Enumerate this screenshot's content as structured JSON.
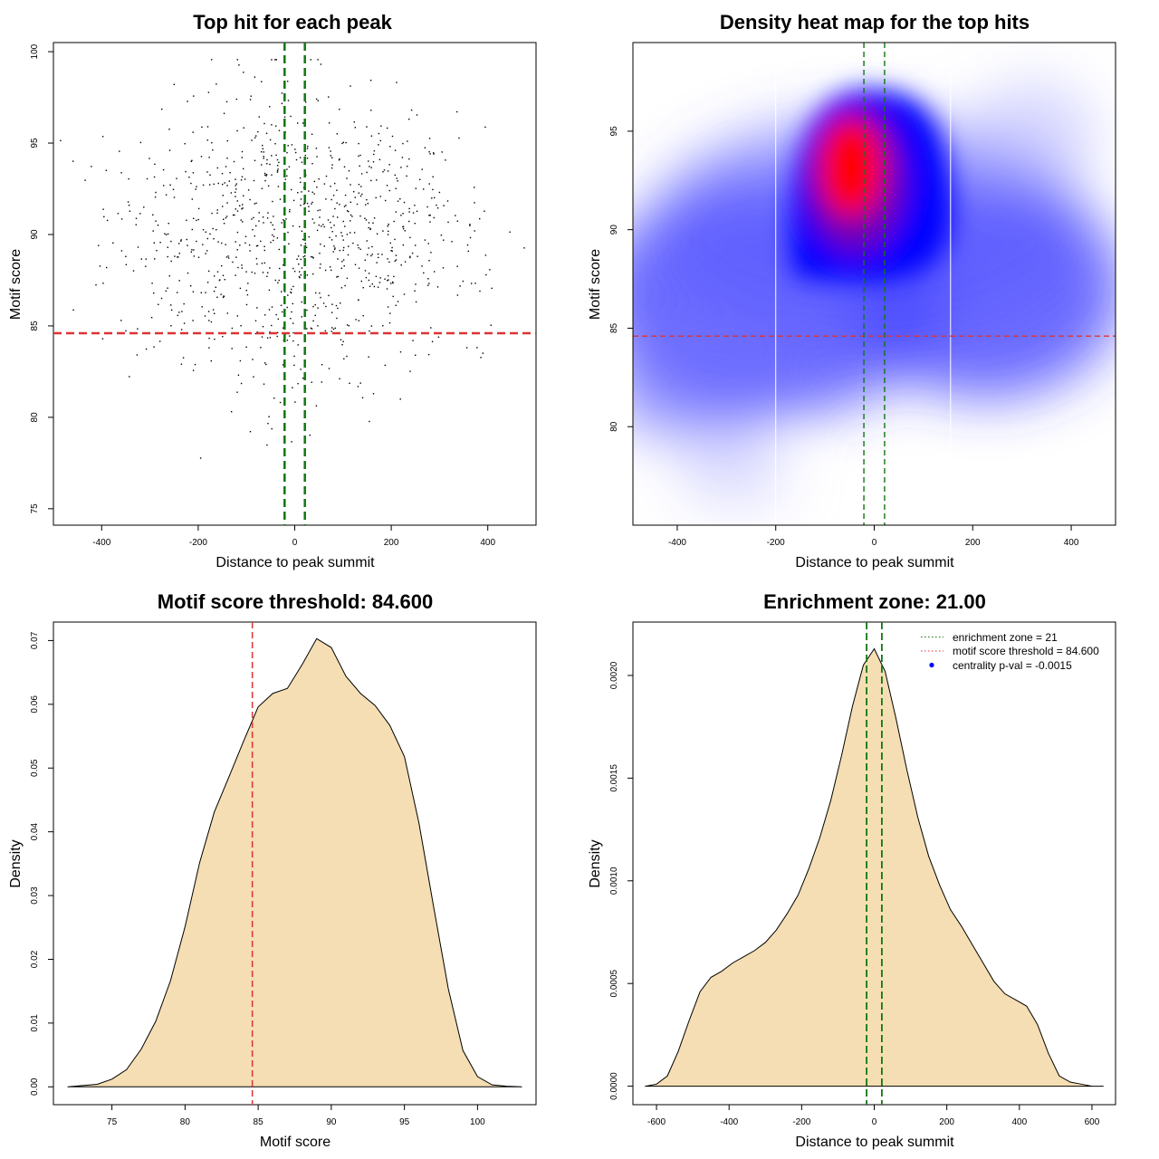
{
  "chart_data": [
    {
      "type": "scatter",
      "title": "Top hit for each peak",
      "xlabel": "Distance to peak summit",
      "ylabel": "Motif score",
      "xlim": [
        -500,
        500
      ],
      "ylim": [
        74.1,
        100.5
      ],
      "xticks": [
        -400,
        -200,
        0,
        200,
        400
      ],
      "yticks": [
        75,
        80,
        85,
        90,
        95,
        100
      ],
      "xtick_labels": [
        "-400",
        "-200",
        "0",
        "200",
        "400"
      ],
      "ytick_labels": [
        "75",
        "80",
        "85",
        "90",
        "95",
        "100"
      ],
      "threshold": 84.6,
      "threshold_color": "#dd3333",
      "enrichment_zone": [
        -21,
        21
      ],
      "zone_color": "#117711",
      "points": {
        "n": 950,
        "x_center": 0,
        "x_spread": 190,
        "y_center": 89.8,
        "y_spread": 4.6,
        "color": "#000000"
      }
    },
    {
      "type": "heatmap",
      "title": "Density heat map for the top hits",
      "xlabel": "Distance to peak summit",
      "ylabel": "Motif score",
      "xlim": [
        -490,
        490
      ],
      "ylim": [
        75,
        99.5
      ],
      "xticks": [
        -400,
        -200,
        0,
        200,
        400
      ],
      "yticks": [
        80,
        85,
        90,
        95
      ],
      "xtick_labels": [
        "-400",
        "-200",
        "0",
        "200",
        "400"
      ],
      "ytick_labels": [
        "80",
        "85",
        "90",
        "95"
      ],
      "threshold": 84.6,
      "threshold_color": "#dd3333",
      "enrichment_zone": [
        -21,
        21
      ],
      "zone_color": "#117711",
      "white_lines_x": [
        -200,
        155
      ],
      "colors": [
        "#ffffff",
        "#0000ff",
        "#ff0000"
      ],
      "density_peak": {
        "x": -20,
        "y": 93
      }
    },
    {
      "type": "area",
      "title": "Motif score threshold: 84.600",
      "xlabel": "Motif score",
      "ylabel": "Density",
      "xlim": [
        71.0,
        104.0
      ],
      "ylim": [
        -0.0028,
        0.0729
      ],
      "xticks": [
        75,
        80,
        85,
        90,
        95,
        100
      ],
      "yticks": [
        0.0,
        0.01,
        0.02,
        0.03,
        0.04,
        0.05,
        0.06,
        0.07
      ],
      "xtick_labels": [
        "75",
        "80",
        "85",
        "90",
        "95",
        "100"
      ],
      "ytick_labels": [
        "0.00",
        "0.01",
        "0.02",
        "0.03",
        "0.04",
        "0.05",
        "0.06",
        "0.07"
      ],
      "fill": "#f5deb3",
      "threshold": 84.6,
      "threshold_color": "#dd3333",
      "x": [
        72.0,
        74.0,
        75.0,
        76.0,
        77.0,
        78.0,
        79.0,
        80.0,
        81.0,
        82.0,
        83.0,
        84.0,
        85.0,
        86.0,
        87.0,
        88.0,
        89.0,
        90.0,
        91.0,
        92.0,
        93.0,
        94.0,
        95.0,
        96.0,
        97.0,
        98.0,
        99.0,
        100.0,
        101.0,
        102.0,
        103.0
      ],
      "y": [
        0.0,
        0.0004,
        0.0012,
        0.0027,
        0.0059,
        0.0103,
        0.0166,
        0.0251,
        0.0352,
        0.0431,
        0.0486,
        0.0542,
        0.0596,
        0.0617,
        0.0625,
        0.0662,
        0.0703,
        0.0689,
        0.0644,
        0.0617,
        0.0598,
        0.0567,
        0.0518,
        0.0413,
        0.0282,
        0.0154,
        0.0057,
        0.0016,
        0.0003,
        0.0001,
        0.0
      ]
    },
    {
      "type": "area",
      "title": "Enrichment zone: 21.00",
      "xlabel": "Distance to peak summit",
      "ylabel": "Density",
      "xlim": [
        -665,
        665
      ],
      "ylim": [
        -9e-05,
        0.00226
      ],
      "xticks": [
        -600,
        -400,
        -200,
        0,
        200,
        400,
        600
      ],
      "yticks": [
        0.0,
        0.0005,
        0.001,
        0.0015,
        0.002
      ],
      "xtick_labels": [
        "-600",
        "-400",
        "-200",
        "0",
        "200",
        "400",
        "600"
      ],
      "ytick_labels": [
        "0.0000",
        "0.0005",
        "0.0010",
        "0.0015",
        "0.0020"
      ],
      "fill": "#f5deb3",
      "enrichment_zone": [
        -21,
        21
      ],
      "zone_color": "#117711",
      "x": [
        -630,
        -600,
        -570,
        -540,
        -510,
        -480,
        -450,
        -420,
        -390,
        -360,
        -330,
        -300,
        -270,
        -240,
        -210,
        -180,
        -150,
        -120,
        -90,
        -60,
        -30,
        0,
        30,
        60,
        90,
        120,
        150,
        180,
        210,
        240,
        270,
        300,
        330,
        360,
        390,
        420,
        450,
        480,
        510,
        540,
        570,
        600,
        630
      ],
      "y": [
        0.0,
        1e-05,
        5e-05,
        0.00017,
        0.00032,
        0.00046,
        0.00053,
        0.00056,
        0.0006,
        0.00063,
        0.00066,
        0.0007,
        0.00076,
        0.00084,
        0.00093,
        0.00106,
        0.00121,
        0.00139,
        0.00161,
        0.00185,
        0.00205,
        0.00213,
        0.00202,
        0.00179,
        0.00154,
        0.00131,
        0.00112,
        0.00098,
        0.00086,
        0.00078,
        0.00069,
        0.0006,
        0.00051,
        0.00045,
        0.00042,
        0.00039,
        0.0003,
        0.00016,
        5e-05,
        2e-05,
        1e-05,
        0.0,
        0.0
      ],
      "legend": {
        "position": "top-right",
        "items": [
          {
            "label": "enrichment zone = 21",
            "color": "#117711",
            "kind": "dotted-line"
          },
          {
            "label": "motif score threshold = 84.600",
            "color": "#dd3333",
            "kind": "dotted-line"
          },
          {
            "label": "centrality p-val = -0.0015",
            "color": "#0000ff",
            "kind": "point"
          }
        ]
      }
    }
  ]
}
